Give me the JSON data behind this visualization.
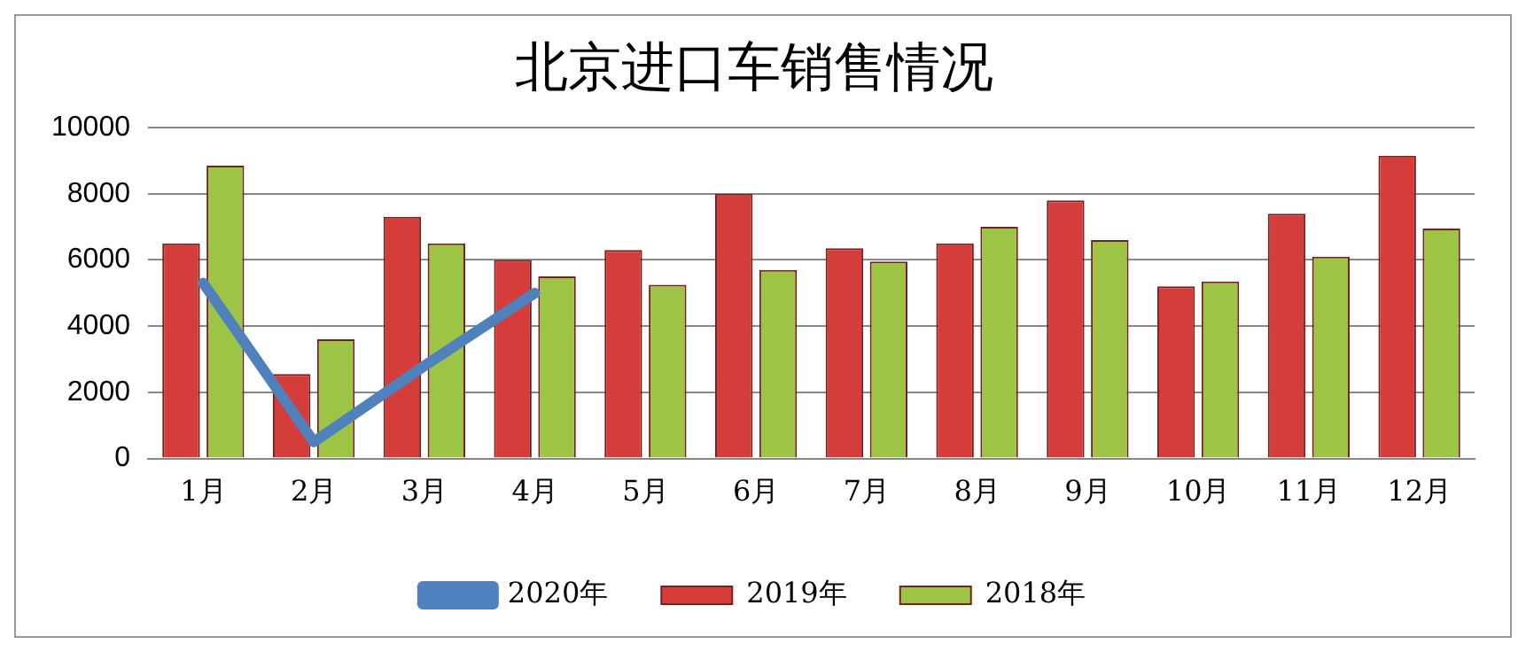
{
  "chart_data": {
    "type": "bar",
    "title": "北京进口车销售情况",
    "categories": [
      "1月",
      "2月",
      "3月",
      "4月",
      "5月",
      "6月",
      "7月",
      "8月",
      "9月",
      "10月",
      "11月",
      "12月"
    ],
    "series": [
      {
        "name": "2019年",
        "color": "#d43d3a",
        "values": [
          6500,
          2550,
          7300,
          6000,
          6300,
          8000,
          6350,
          6500,
          7800,
          5200,
          7400,
          9150
        ]
      },
      {
        "name": "2018年",
        "color": "#9dc444",
        "values": [
          8850,
          3600,
          6500,
          5500,
          5250,
          5700,
          5950,
          7000,
          6600,
          5350,
          6100,
          6950
        ]
      },
      {
        "name": "2020年",
        "type": "line",
        "color": "#4f81bd",
        "values": [
          5300,
          500,
          2800,
          5000,
          null,
          null,
          null,
          null,
          null,
          null,
          null,
          null
        ]
      }
    ],
    "ylim": [
      0,
      10000
    ],
    "yticks": [
      0,
      2000,
      4000,
      6000,
      8000,
      10000
    ],
    "grid": "y",
    "legend": "bottom",
    "marker": "none"
  }
}
